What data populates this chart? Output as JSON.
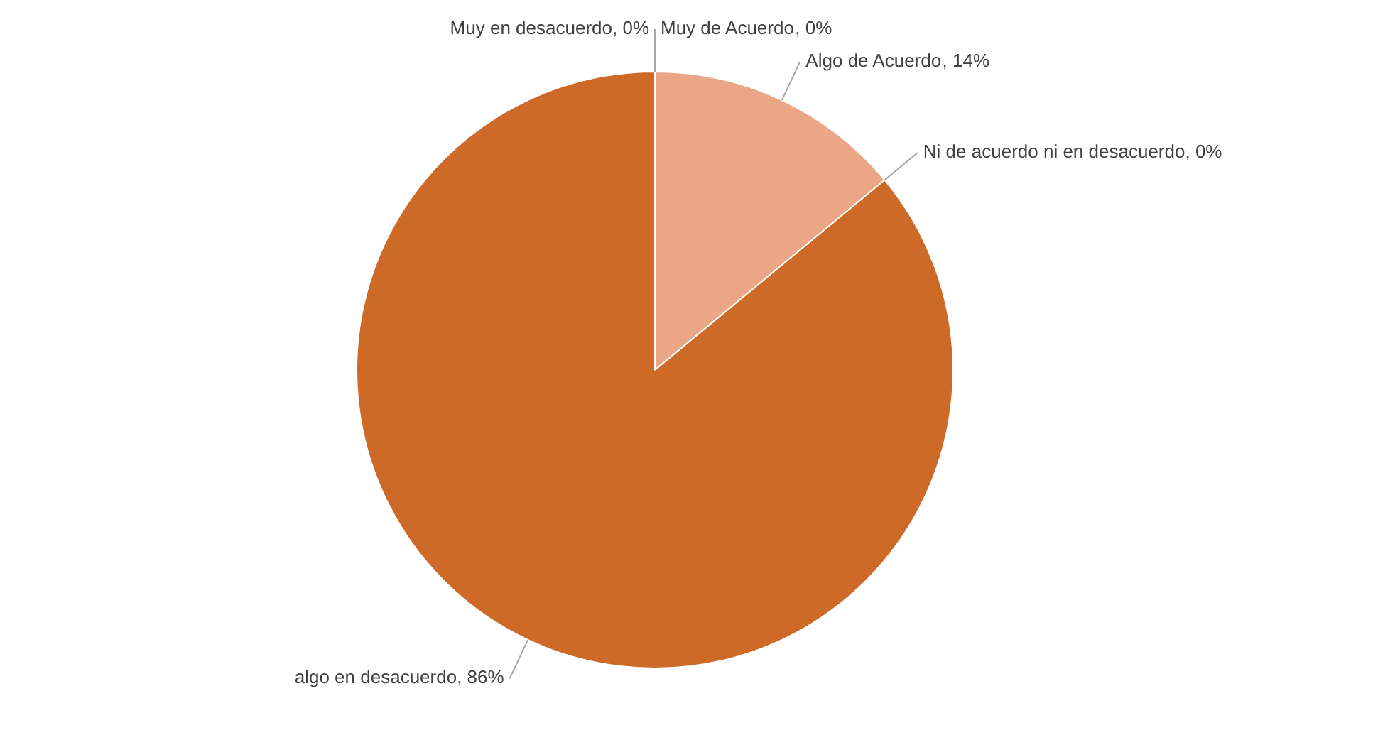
{
  "chart_data": {
    "type": "pie",
    "categories": [
      "Muy de Acuerdo",
      "Algo de Acuerdo",
      "Ni de acuerdo ni en desacuerdo",
      "algo en desacuerdo",
      "Muy en desacuerdo"
    ],
    "values": [
      0,
      14,
      0,
      86,
      0
    ],
    "value_labels": [
      ", 0%",
      ", 14%",
      ", 0%",
      ", 86%",
      ", 0%"
    ],
    "colors": [
      "#a0522d",
      "#eba685",
      "#f4c9b0",
      "#cd6a28",
      "#8b4513"
    ],
    "legend": false
  }
}
